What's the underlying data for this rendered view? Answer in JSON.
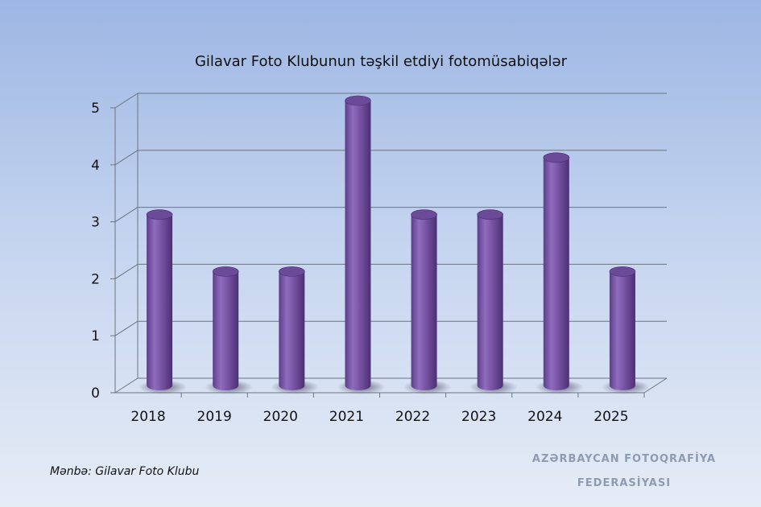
{
  "chart_data": {
    "type": "bar",
    "title": "Gilavar Foto Klubunun təşkil etdiyi fotomüsabiqələr",
    "categories": [
      "2018",
      "2019",
      "2020",
      "2021",
      "2022",
      "2023",
      "2024",
      "2025"
    ],
    "values": [
      3,
      2,
      2,
      5,
      3,
      3,
      4,
      2
    ],
    "y_ticks": [
      "0",
      "1",
      "2",
      "3",
      "4",
      "5"
    ],
    "ylim": [
      0,
      5
    ],
    "grid": true,
    "bar_color": "#7a56a6",
    "style": "3d-cylinder"
  },
  "source_note": "Mənbə: Gilavar Foto Klubu",
  "watermark": {
    "line1": "AZƏRBAYCAN FOTOQRAFİYA",
    "line2": "FEDERASİYASI"
  }
}
